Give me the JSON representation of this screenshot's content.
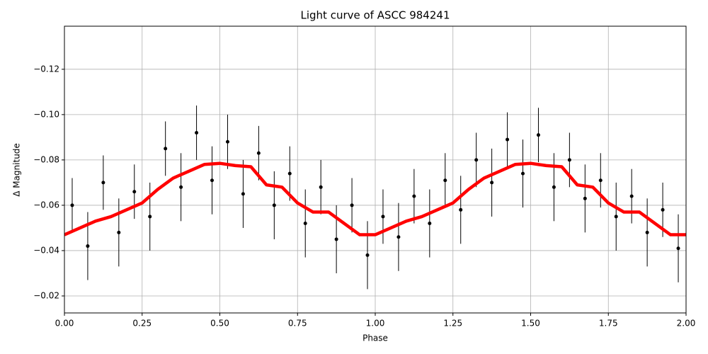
{
  "chart_data": {
    "type": "scatter",
    "title": "Light curve of ASCC 984241",
    "xlabel": "Phase",
    "ylabel": "Δ Magnitude",
    "xlim": [
      0,
      2
    ],
    "ylim": [
      -0.0125,
      -0.139
    ],
    "xticks": [
      {
        "value": 0,
        "label": "0.00"
      },
      {
        "value": 0.25,
        "label": "0.25"
      },
      {
        "value": 0.5,
        "label": "0.50"
      },
      {
        "value": 0.75,
        "label": "0.75"
      },
      {
        "value": 1,
        "label": "1.00"
      },
      {
        "value": 1.25,
        "label": "1.25"
      },
      {
        "value": 1.5,
        "label": "1.50"
      },
      {
        "value": 1.75,
        "label": "1.75"
      },
      {
        "value": 2,
        "label": "2.00"
      }
    ],
    "yticks": [
      {
        "value": -0.12,
        "label": "−0.12"
      },
      {
        "value": -0.1,
        "label": "−0.10"
      },
      {
        "value": -0.08,
        "label": "−0.08"
      },
      {
        "value": -0.06,
        "label": "−0.06"
      },
      {
        "value": -0.04,
        "label": "−0.04"
      },
      {
        "value": -0.02,
        "label": "−0.02"
      }
    ],
    "grid": true,
    "series": [
      {
        "type": "scatter",
        "color": "#000000",
        "x": [
          0.025,
          0.075,
          0.125,
          0.175,
          0.225,
          0.275,
          0.325,
          0.375,
          0.425,
          0.475,
          0.525,
          0.575,
          0.625,
          0.675,
          0.725,
          0.775,
          0.825,
          0.875,
          0.925,
          0.975,
          1.025,
          1.075,
          1.125,
          1.175,
          1.225,
          1.275,
          1.325,
          1.375,
          1.425,
          1.475,
          1.525,
          1.575,
          1.625,
          1.675,
          1.725,
          1.775,
          1.825,
          1.875,
          1.925,
          1.975
        ],
        "values": [
          -0.06,
          -0.042,
          -0.07,
          -0.048,
          -0.066,
          -0.055,
          -0.085,
          -0.068,
          -0.092,
          -0.071,
          -0.088,
          -0.065,
          -0.083,
          -0.06,
          -0.074,
          -0.052,
          -0.068,
          -0.045,
          -0.06,
          -0.038,
          -0.055,
          -0.046,
          -0.064,
          -0.052,
          -0.071,
          -0.058,
          -0.08,
          -0.07,
          -0.089,
          -0.074,
          -0.091,
          -0.068,
          -0.08,
          -0.063,
          -0.071,
          -0.055,
          -0.064,
          -0.048,
          -0.058,
          -0.041
        ],
        "errors": [
          0.012,
          0.015,
          0.012,
          0.015,
          0.012,
          0.015,
          0.012,
          0.015,
          0.012,
          0.015,
          0.012,
          0.015,
          0.012,
          0.015,
          0.012,
          0.015,
          0.012,
          0.015,
          0.012,
          0.015,
          0.012,
          0.015,
          0.012,
          0.015,
          0.012,
          0.015,
          0.012,
          0.015,
          0.012,
          0.015,
          0.012,
          0.015,
          0.012,
          0.015,
          0.012,
          0.015,
          0.012,
          0.015,
          0.012,
          0.015
        ]
      },
      {
        "type": "line",
        "color": "#ff0000",
        "x": [
          0,
          0.05,
          0.1,
          0.15,
          0.2,
          0.25,
          0.3,
          0.35,
          0.4,
          0.45,
          0.5,
          0.55,
          0.6,
          0.65,
          0.7,
          0.75,
          0.8,
          0.85,
          0.9,
          0.95,
          1,
          1.05,
          1.1,
          1.15,
          1.2,
          1.25,
          1.3,
          1.35,
          1.4,
          1.45,
          1.5,
          1.55,
          1.6,
          1.65,
          1.7,
          1.75,
          1.8,
          1.85,
          1.9,
          1.95,
          2
        ],
        "values": [
          -0.047,
          -0.05,
          -0.053,
          -0.055,
          -0.058,
          -0.061,
          -0.067,
          -0.072,
          -0.075,
          -0.078,
          -0.0785,
          -0.0775,
          -0.077,
          -0.069,
          -0.068,
          -0.061,
          -0.057,
          -0.057,
          -0.052,
          -0.047,
          -0.047,
          -0.05,
          -0.053,
          -0.055,
          -0.058,
          -0.061,
          -0.067,
          -0.072,
          -0.075,
          -0.078,
          -0.0785,
          -0.0775,
          -0.077,
          -0.069,
          -0.068,
          -0.061,
          -0.057,
          -0.057,
          -0.052,
          -0.047,
          -0.047
        ]
      }
    ]
  }
}
